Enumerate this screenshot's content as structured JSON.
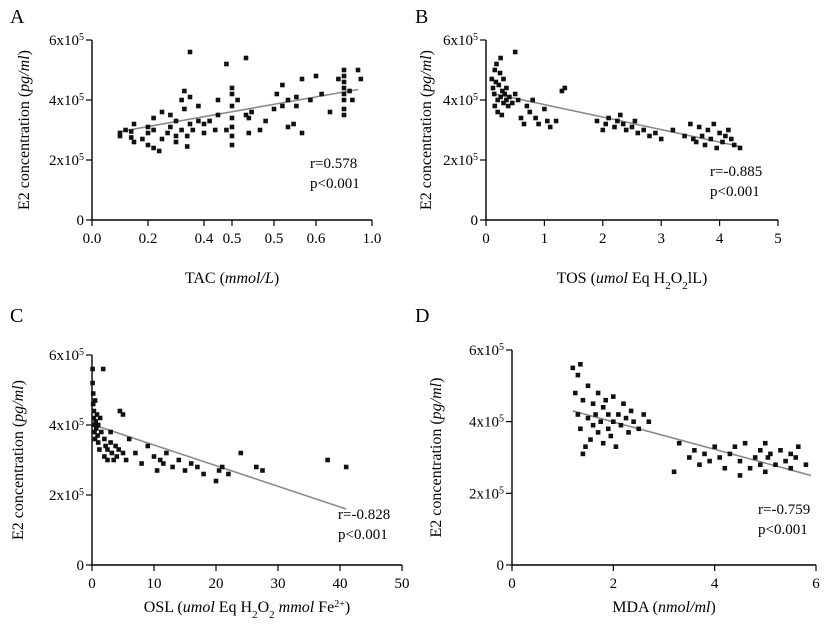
{
  "panels": [
    {
      "letter": "A",
      "stats": [
        "r=0.578",
        "p<0.001"
      ],
      "ylabel_parts": [
        "E2 concentration (",
        "pg/ml",
        ")"
      ],
      "xlabel_parts": [
        "TAC (",
        "mmol/L",
        ")"
      ]
    },
    {
      "letter": "B",
      "stats": [
        "r=-0.885",
        "p<0.001"
      ],
      "ylabel_parts": [
        "E2 concentration (",
        "pg/ml",
        ")"
      ],
      "xlabel_parts": [
        "TOS (",
        "umol",
        " Eq H",
        "2",
        "O",
        "2",
        "lL)"
      ]
    },
    {
      "letter": "C",
      "stats": [
        "r=-0.828",
        "p<0.001"
      ],
      "ylabel_parts": [
        "E2 concentration (",
        "pg/ml",
        ")"
      ],
      "xlabel_parts": [
        "OSL (",
        "umol",
        " Eq H",
        "2",
        "O",
        "2",
        " ",
        "mmol",
        " Fe",
        "2+",
        ")"
      ]
    },
    {
      "letter": "D",
      "stats": [
        "r=-0.759",
        "p<0.001"
      ],
      "ylabel_parts": [
        "E2 concentration (",
        "pg/ml",
        ")"
      ],
      "xlabel_parts": [
        "MDA (",
        "nmol/ml",
        ")"
      ]
    }
  ],
  "chart_data": [
    {
      "type": "scatter",
      "panel": "A",
      "xlim": [
        0,
        1.0
      ],
      "ylim": [
        0,
        600000
      ],
      "x_ticks": [
        "0.0",
        "0.2",
        "0.4",
        "0.5",
        "0.5",
        "0.6",
        "1.0"
      ],
      "y_ticks": [
        "0",
        "2x10",
        "4x10",
        "6x10"
      ],
      "y_tick_exponent": "5",
      "trend": [
        [
          0.1,
          295000
        ],
        [
          0.95,
          435000
        ]
      ],
      "points": [
        [
          0.1,
          290000
        ],
        [
          0.1,
          280000
        ],
        [
          0.12,
          300000
        ],
        [
          0.14,
          295000
        ],
        [
          0.14,
          275000
        ],
        [
          0.15,
          320000
        ],
        [
          0.15,
          260000
        ],
        [
          0.18,
          270000
        ],
        [
          0.2,
          310000
        ],
        [
          0.2,
          290000
        ],
        [
          0.2,
          250000
        ],
        [
          0.22,
          340000
        ],
        [
          0.22,
          300000
        ],
        [
          0.22,
          240000
        ],
        [
          0.24,
          230000
        ],
        [
          0.25,
          360000
        ],
        [
          0.25,
          270000
        ],
        [
          0.27,
          290000
        ],
        [
          0.28,
          350000
        ],
        [
          0.28,
          310000
        ],
        [
          0.3,
          260000
        ],
        [
          0.3,
          330000
        ],
        [
          0.3,
          280000
        ],
        [
          0.32,
          400000
        ],
        [
          0.32,
          300000
        ],
        [
          0.33,
          430000
        ],
        [
          0.33,
          370000
        ],
        [
          0.34,
          245000
        ],
        [
          0.34,
          280000
        ],
        [
          0.35,
          560000
        ],
        [
          0.35,
          410000
        ],
        [
          0.35,
          320000
        ],
        [
          0.36,
          300000
        ],
        [
          0.38,
          380000
        ],
        [
          0.38,
          330000
        ],
        [
          0.4,
          290000
        ],
        [
          0.4,
          320000
        ],
        [
          0.42,
          330000
        ],
        [
          0.44,
          300000
        ],
        [
          0.45,
          350000
        ],
        [
          0.45,
          400000
        ],
        [
          0.48,
          520000
        ],
        [
          0.48,
          300000
        ],
        [
          0.5,
          250000
        ],
        [
          0.5,
          280000
        ],
        [
          0.5,
          310000
        ],
        [
          0.5,
          340000
        ],
        [
          0.5,
          380000
        ],
        [
          0.5,
          420000
        ],
        [
          0.5,
          440000
        ],
        [
          0.52,
          400000
        ],
        [
          0.55,
          540000
        ],
        [
          0.55,
          350000
        ],
        [
          0.56,
          290000
        ],
        [
          0.56,
          340000
        ],
        [
          0.57,
          360000
        ],
        [
          0.6,
          300000
        ],
        [
          0.62,
          330000
        ],
        [
          0.65,
          370000
        ],
        [
          0.66,
          420000
        ],
        [
          0.68,
          450000
        ],
        [
          0.68,
          380000
        ],
        [
          0.7,
          400000
        ],
        [
          0.7,
          310000
        ],
        [
          0.72,
          320000
        ],
        [
          0.73,
          380000
        ],
        [
          0.73,
          410000
        ],
        [
          0.75,
          470000
        ],
        [
          0.75,
          290000
        ],
        [
          0.78,
          400000
        ],
        [
          0.8,
          480000
        ],
        [
          0.82,
          420000
        ],
        [
          0.85,
          360000
        ],
        [
          0.88,
          470000
        ],
        [
          0.9,
          400000
        ],
        [
          0.9,
          420000
        ],
        [
          0.9,
          440000
        ],
        [
          0.9,
          460000
        ],
        [
          0.9,
          480000
        ],
        [
          0.9,
          500000
        ],
        [
          0.9,
          370000
        ],
        [
          0.9,
          350000
        ],
        [
          0.92,
          430000
        ],
        [
          0.93,
          400000
        ],
        [
          0.95,
          500000
        ],
        [
          0.96,
          470000
        ]
      ]
    },
    {
      "type": "scatter",
      "panel": "B",
      "xlim": [
        0,
        5
      ],
      "ylim": [
        0,
        600000
      ],
      "x_ticks": [
        "0",
        "1",
        "2",
        "3",
        "4",
        "5"
      ],
      "y_ticks": [
        "0",
        "2x10",
        "4x10",
        "6x10"
      ],
      "y_tick_exponent": "5",
      "trend": [
        [
          0.15,
          420000
        ],
        [
          4.35,
          245000
        ]
      ],
      "points": [
        [
          0.1,
          470000
        ],
        [
          0.12,
          440000
        ],
        [
          0.14,
          420000
        ],
        [
          0.15,
          500000
        ],
        [
          0.15,
          380000
        ],
        [
          0.17,
          460000
        ],
        [
          0.18,
          520000
        ],
        [
          0.2,
          400000
        ],
        [
          0.2,
          360000
        ],
        [
          0.22,
          450000
        ],
        [
          0.24,
          490000
        ],
        [
          0.25,
          540000
        ],
        [
          0.25,
          410000
        ],
        [
          0.27,
          350000
        ],
        [
          0.28,
          430000
        ],
        [
          0.3,
          470000
        ],
        [
          0.3,
          390000
        ],
        [
          0.32,
          420000
        ],
        [
          0.35,
          400000
        ],
        [
          0.35,
          440000
        ],
        [
          0.38,
          380000
        ],
        [
          0.4,
          410000
        ],
        [
          0.45,
          390000
        ],
        [
          0.5,
          560000
        ],
        [
          0.5,
          420000
        ],
        [
          0.55,
          400000
        ],
        [
          0.6,
          340000
        ],
        [
          0.65,
          320000
        ],
        [
          0.7,
          380000
        ],
        [
          0.75,
          360000
        ],
        [
          0.8,
          400000
        ],
        [
          0.85,
          340000
        ],
        [
          0.9,
          320000
        ],
        [
          1.0,
          370000
        ],
        [
          1.05,
          330000
        ],
        [
          1.1,
          310000
        ],
        [
          1.2,
          330000
        ],
        [
          1.3,
          430000
        ],
        [
          1.35,
          440000
        ],
        [
          1.9,
          330000
        ],
        [
          2.0,
          300000
        ],
        [
          2.05,
          320000
        ],
        [
          2.1,
          340000
        ],
        [
          2.2,
          310000
        ],
        [
          2.25,
          330000
        ],
        [
          2.3,
          350000
        ],
        [
          2.35,
          320000
        ],
        [
          2.4,
          300000
        ],
        [
          2.5,
          310000
        ],
        [
          2.55,
          330000
        ],
        [
          2.6,
          290000
        ],
        [
          2.7,
          300000
        ],
        [
          2.8,
          280000
        ],
        [
          2.9,
          290000
        ],
        [
          3.0,
          270000
        ],
        [
          3.2,
          300000
        ],
        [
          3.4,
          280000
        ],
        [
          3.5,
          320000
        ],
        [
          3.55,
          270000
        ],
        [
          3.6,
          260000
        ],
        [
          3.65,
          310000
        ],
        [
          3.7,
          280000
        ],
        [
          3.75,
          250000
        ],
        [
          3.8,
          300000
        ],
        [
          3.85,
          270000
        ],
        [
          3.9,
          320000
        ],
        [
          3.95,
          240000
        ],
        [
          4.0,
          290000
        ],
        [
          4.05,
          260000
        ],
        [
          4.1,
          280000
        ],
        [
          4.15,
          300000
        ],
        [
          4.2,
          270000
        ],
        [
          4.25,
          250000
        ],
        [
          4.35,
          240000
        ]
      ]
    },
    {
      "type": "scatter",
      "panel": "C",
      "xlim": [
        0,
        50
      ],
      "ylim": [
        0,
        600000
      ],
      "x_ticks": [
        "0",
        "10",
        "20",
        "30",
        "40",
        "50"
      ],
      "y_ticks": [
        "0",
        "2x10",
        "4x10",
        "6x10"
      ],
      "y_tick_exponent": "5",
      "trend": [
        [
          0.3,
          400000
        ],
        [
          41,
          160000
        ]
      ],
      "points": [
        [
          0.1,
          560000
        ],
        [
          0.1,
          520000
        ],
        [
          0.2,
          490000
        ],
        [
          0.2,
          460000
        ],
        [
          0.3,
          440000
        ],
        [
          0.3,
          420000
        ],
        [
          0.4,
          400000
        ],
        [
          0.4,
          380000
        ],
        [
          0.5,
          470000
        ],
        [
          0.5,
          360000
        ],
        [
          0.6,
          410000
        ],
        [
          0.7,
          390000
        ],
        [
          0.8,
          430000
        ],
        [
          0.9,
          370000
        ],
        [
          1.0,
          350000
        ],
        [
          1.0,
          400000
        ],
        [
          1.2,
          330000
        ],
        [
          1.3,
          420000
        ],
        [
          1.5,
          380000
        ],
        [
          1.8,
          560000
        ],
        [
          2.0,
          360000
        ],
        [
          2.0,
          310000
        ],
        [
          2.2,
          340000
        ],
        [
          2.5,
          300000
        ],
        [
          2.5,
          330000
        ],
        [
          3.0,
          380000
        ],
        [
          3.0,
          350000
        ],
        [
          3.2,
          320000
        ],
        [
          3.5,
          300000
        ],
        [
          3.8,
          340000
        ],
        [
          4.0,
          310000
        ],
        [
          4.3,
          330000
        ],
        [
          4.5,
          440000
        ],
        [
          5.0,
          430000
        ],
        [
          5.0,
          320000
        ],
        [
          5.5,
          300000
        ],
        [
          6.0,
          360000
        ],
        [
          7.0,
          320000
        ],
        [
          8.0,
          290000
        ],
        [
          9.0,
          340000
        ],
        [
          10.0,
          310000
        ],
        [
          10.5,
          270000
        ],
        [
          11.0,
          300000
        ],
        [
          11.5,
          290000
        ],
        [
          12.0,
          320000
        ],
        [
          13.0,
          280000
        ],
        [
          14.0,
          300000
        ],
        [
          15.0,
          270000
        ],
        [
          16.0,
          290000
        ],
        [
          17.0,
          280000
        ],
        [
          18.0,
          260000
        ],
        [
          20.0,
          240000
        ],
        [
          20.5,
          270000
        ],
        [
          21.0,
          280000
        ],
        [
          22.0,
          260000
        ],
        [
          24.0,
          320000
        ],
        [
          26.5,
          280000
        ],
        [
          27.5,
          270000
        ],
        [
          38.0,
          300000
        ],
        [
          41.0,
          280000
        ]
      ]
    },
    {
      "type": "scatter",
      "panel": "D",
      "xlim": [
        0,
        6
      ],
      "ylim": [
        0,
        600000
      ],
      "x_ticks": [
        "0",
        "2",
        "4",
        "6"
      ],
      "y_ticks": [
        "0",
        "2x10",
        "4x10",
        "6x10"
      ],
      "y_tick_exponent": "5",
      "trend": [
        [
          1.2,
          430000
        ],
        [
          5.9,
          250000
        ]
      ],
      "points": [
        [
          1.2,
          550000
        ],
        [
          1.25,
          480000
        ],
        [
          1.3,
          530000
        ],
        [
          1.3,
          420000
        ],
        [
          1.35,
          560000
        ],
        [
          1.35,
          380000
        ],
        [
          1.4,
          460000
        ],
        [
          1.4,
          310000
        ],
        [
          1.45,
          330000
        ],
        [
          1.5,
          500000
        ],
        [
          1.5,
          410000
        ],
        [
          1.55,
          350000
        ],
        [
          1.6,
          450000
        ],
        [
          1.6,
          390000
        ],
        [
          1.65,
          420000
        ],
        [
          1.7,
          370000
        ],
        [
          1.7,
          480000
        ],
        [
          1.75,
          400000
        ],
        [
          1.8,
          340000
        ],
        [
          1.8,
          440000
        ],
        [
          1.85,
          460000
        ],
        [
          1.9,
          380000
        ],
        [
          1.9,
          420000
        ],
        [
          1.95,
          360000
        ],
        [
          2.0,
          470000
        ],
        [
          2.0,
          400000
        ],
        [
          2.05,
          330000
        ],
        [
          2.1,
          420000
        ],
        [
          2.15,
          390000
        ],
        [
          2.2,
          450000
        ],
        [
          2.25,
          410000
        ],
        [
          2.3,
          370000
        ],
        [
          2.35,
          430000
        ],
        [
          2.4,
          400000
        ],
        [
          2.5,
          380000
        ],
        [
          2.6,
          420000
        ],
        [
          2.7,
          400000
        ],
        [
          3.2,
          260000
        ],
        [
          3.3,
          340000
        ],
        [
          3.5,
          300000
        ],
        [
          3.6,
          320000
        ],
        [
          3.7,
          280000
        ],
        [
          3.8,
          310000
        ],
        [
          3.9,
          290000
        ],
        [
          4.0,
          330000
        ],
        [
          4.1,
          300000
        ],
        [
          4.2,
          270000
        ],
        [
          4.3,
          310000
        ],
        [
          4.4,
          330000
        ],
        [
          4.5,
          250000
        ],
        [
          4.5,
          290000
        ],
        [
          4.6,
          340000
        ],
        [
          4.7,
          270000
        ],
        [
          4.8,
          300000
        ],
        [
          4.9,
          280000
        ],
        [
          4.9,
          320000
        ],
        [
          5.0,
          340000
        ],
        [
          5.0,
          260000
        ],
        [
          5.05,
          300000
        ],
        [
          5.1,
          310000
        ],
        [
          5.2,
          280000
        ],
        [
          5.3,
          320000
        ],
        [
          5.4,
          290000
        ],
        [
          5.5,
          270000
        ],
        [
          5.5,
          310000
        ],
        [
          5.6,
          300000
        ],
        [
          5.65,
          330000
        ],
        [
          5.8,
          280000
        ]
      ]
    }
  ]
}
